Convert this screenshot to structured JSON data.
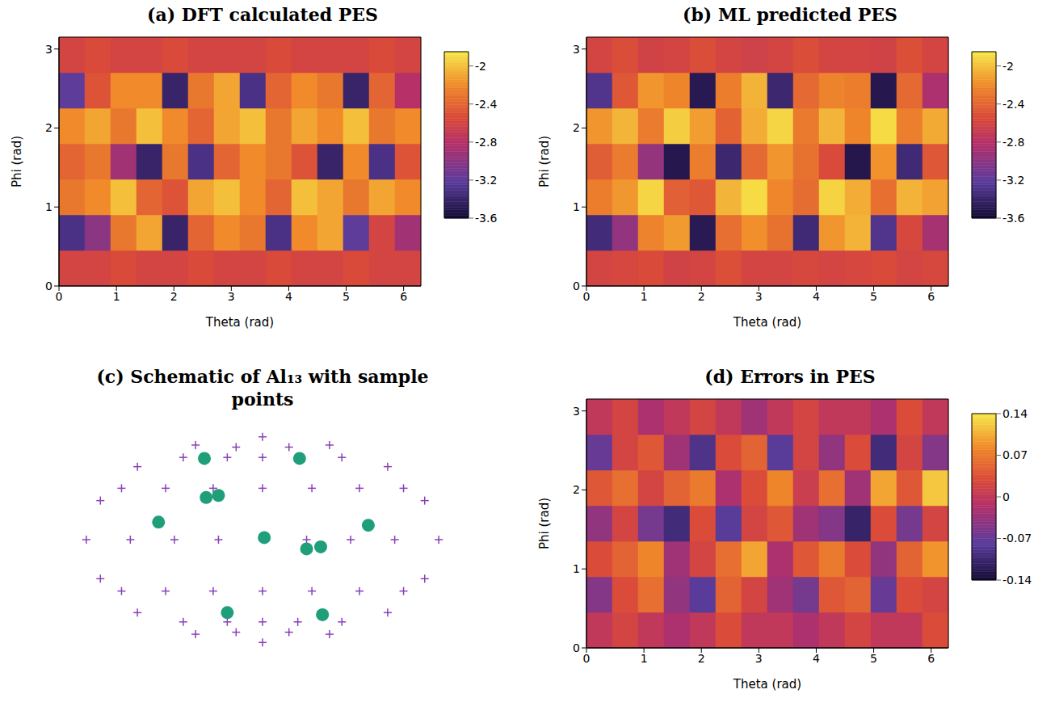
{
  "chart_data": [
    {
      "type": "heatmap",
      "title": "(a) DFT calculated PES",
      "x_label": "Theta (rad)",
      "y_label": "Phi (rad)",
      "xlim": [
        0,
        6.3
      ],
      "ylim": [
        0,
        3.15
      ],
      "xticks": [
        0,
        1,
        2,
        3,
        4,
        5,
        6
      ],
      "yticks": [
        0,
        1,
        2,
        3
      ],
      "x_edges": [
        0,
        0.45,
        0.9,
        1.35,
        1.8,
        2.25,
        2.7,
        3.15,
        3.6,
        4.05,
        4.5,
        4.95,
        5.4,
        5.85,
        6.3
      ],
      "y_edges": [
        0,
        0.45,
        0.9,
        1.35,
        1.8,
        2.25,
        2.7,
        3.15
      ],
      "z": [
        [
          -2.6,
          -2.6,
          -2.55,
          -2.6,
          -2.6,
          -2.55,
          -2.6,
          -2.6,
          -2.55,
          -2.6,
          -2.6,
          -2.55,
          -2.6,
          -2.6
        ],
        [
          -3.3,
          -3.0,
          -2.3,
          -2.1,
          -3.4,
          -2.4,
          -2.2,
          -2.3,
          -3.3,
          -2.2,
          -2.1,
          -3.2,
          -2.6,
          -2.9
        ],
        [
          -2.3,
          -2.2,
          -2.0,
          -2.4,
          -2.5,
          -2.1,
          -2.0,
          -2.2,
          -2.4,
          -2.0,
          -2.1,
          -2.3,
          -2.1,
          -2.2
        ],
        [
          -2.4,
          -2.3,
          -2.9,
          -3.4,
          -2.3,
          -3.3,
          -2.4,
          -2.2,
          -2.3,
          -2.5,
          -3.4,
          -2.2,
          -3.3,
          -2.5
        ],
        [
          -2.2,
          -2.1,
          -2.3,
          -2.0,
          -2.2,
          -2.4,
          -2.1,
          -2.0,
          -2.3,
          -2.1,
          -2.2,
          -2.0,
          -2.3,
          -2.2
        ],
        [
          -3.2,
          -2.5,
          -2.2,
          -2.2,
          -3.4,
          -2.3,
          -2.1,
          -3.3,
          -2.4,
          -2.2,
          -2.3,
          -3.4,
          -2.4,
          -2.8
        ],
        [
          -2.6,
          -2.55,
          -2.6,
          -2.6,
          -2.55,
          -2.6,
          -2.6,
          -2.6,
          -2.55,
          -2.6,
          -2.6,
          -2.6,
          -2.55,
          -2.6
        ]
      ],
      "colorbar": {
        "range": [
          -3.6,
          -1.85
        ],
        "ticks": [
          -2,
          -2.4,
          -2.8,
          -3.2,
          -3.6
        ]
      }
    },
    {
      "type": "heatmap",
      "title": "(b) ML predicted PES",
      "x_label": "Theta (rad)",
      "y_label": "Phi (rad)",
      "xlim": [
        0,
        6.3
      ],
      "ylim": [
        0,
        3.15
      ],
      "xticks": [
        0,
        1,
        2,
        3,
        4,
        5,
        6
      ],
      "yticks": [
        0,
        1,
        2,
        3
      ],
      "x_edges": [
        0,
        0.45,
        0.9,
        1.35,
        1.8,
        2.25,
        2.7,
        3.15,
        3.6,
        4.05,
        4.5,
        4.95,
        5.4,
        5.85,
        6.3
      ],
      "y_edges": [
        0,
        0.45,
        0.9,
        1.35,
        1.8,
        2.25,
        2.7,
        3.15
      ],
      "z": [
        [
          -2.6,
          -2.58,
          -2.55,
          -2.62,
          -2.6,
          -2.52,
          -2.6,
          -2.6,
          -2.57,
          -2.6,
          -2.58,
          -2.55,
          -2.6,
          -2.57
        ],
        [
          -3.35,
          -2.97,
          -2.24,
          -2.14,
          -3.48,
          -2.35,
          -2.18,
          -2.33,
          -3.36,
          -2.16,
          -2.05,
          -3.27,
          -2.57,
          -2.88
        ],
        [
          -2.27,
          -2.15,
          -1.92,
          -2.43,
          -2.48,
          -2.04,
          -1.9,
          -2.22,
          -2.36,
          -1.93,
          -2.07,
          -2.34,
          -2.05,
          -2.11
        ],
        [
          -2.44,
          -2.28,
          -2.96,
          -3.5,
          -2.27,
          -3.38,
          -2.38,
          -2.16,
          -2.33,
          -2.55,
          -3.51,
          -2.17,
          -3.36,
          -2.48
        ],
        [
          -2.16,
          -2.04,
          -2.28,
          -1.95,
          -2.13,
          -2.42,
          -2.07,
          -1.92,
          -2.29,
          -2.04,
          -2.23,
          -1.9,
          -2.26,
          -2.08
        ],
        [
          -3.27,
          -2.48,
          -2.16,
          -2.23,
          -3.49,
          -2.27,
          -2.05,
          -3.38,
          -2.38,
          -2.24,
          -2.27,
          -3.5,
          -2.38,
          -2.85
        ],
        [
          -2.6,
          -2.53,
          -2.62,
          -2.6,
          -2.53,
          -2.6,
          -2.63,
          -2.6,
          -2.53,
          -2.6,
          -2.6,
          -2.62,
          -2.52,
          -2.6
        ]
      ],
      "colorbar": {
        "range": [
          -3.6,
          -1.85
        ],
        "ticks": [
          -2,
          -2.4,
          -2.8,
          -3.2,
          -3.6
        ]
      }
    },
    {
      "type": "scatter",
      "title": "(c) Schematic of Al₁₃ with sample points",
      "tick_labels": false,
      "xlim": [
        -1.1,
        1.1
      ],
      "ylim": [
        -1.1,
        1.1
      ],
      "series": [
        {
          "color": "#8a3fb8",
          "marker": "plus",
          "x": [
            1,
            0.92,
            0.71,
            0.38,
            0,
            -0.38,
            -0.71,
            -0.92,
            -1,
            -0.92,
            -0.71,
            -0.38,
            0,
            0.38,
            0.71,
            0.92,
            -0.8,
            -0.55,
            -0.28,
            0,
            0.28,
            0.55,
            0.8,
            -0.75,
            -0.5,
            -0.25,
            0,
            0.25,
            0.5,
            0.75,
            -0.8,
            -0.55,
            -0.28,
            0,
            0.28,
            0.55,
            0.8,
            -0.45,
            -0.2,
            0,
            0.2,
            0.45,
            -0.45,
            -0.2,
            0,
            0.2,
            0.45,
            -0.15,
            0.15,
            -0.15,
            0.15
          ],
          "y": [
            0,
            0.38,
            0.71,
            0.92,
            1,
            0.92,
            0.71,
            0.38,
            0,
            -0.38,
            -0.71,
            -0.92,
            -1,
            -0.92,
            -0.71,
            -0.38,
            0.5,
            0.5,
            0.5,
            0.5,
            0.5,
            0.5,
            0.5,
            0,
            0,
            0,
            0,
            0,
            0,
            0,
            -0.5,
            -0.5,
            -0.5,
            -0.5,
            -0.5,
            -0.5,
            -0.5,
            0.8,
            0.8,
            0.8,
            0.8,
            0.8,
            -0.8,
            -0.8,
            -0.8,
            -0.8,
            -0.8,
            0.9,
            0.9,
            -0.9,
            -0.9
          ]
        },
        {
          "color": "#1f9e7a",
          "marker": "circle",
          "x": [
            -0.33,
            0.21,
            -0.32,
            -0.25,
            -0.59,
            0.01,
            0.25,
            0.33,
            0.6,
            -0.2,
            0.34
          ],
          "y": [
            0.79,
            0.79,
            0.41,
            0.43,
            0.17,
            0.02,
            -0.09,
            -0.07,
            0.14,
            -0.71,
            -0.73
          ]
        }
      ]
    },
    {
      "type": "heatmap",
      "title": "(d) Errors in PES",
      "x_label": "Theta (rad)",
      "y_label": "Phi (rad)",
      "xlim": [
        0,
        6.3
      ],
      "ylim": [
        0,
        3.15
      ],
      "xticks": [
        0,
        1,
        2,
        3,
        4,
        5,
        6
      ],
      "yticks": [
        0,
        1,
        2,
        3
      ],
      "x_edges": [
        0,
        0.45,
        0.9,
        1.35,
        1.8,
        2.25,
        2.7,
        3.15,
        3.6,
        4.05,
        4.5,
        4.95,
        5.4,
        5.85,
        6.3
      ],
      "y_edges": [
        0,
        0.45,
        0.9,
        1.35,
        1.8,
        2.25,
        2.7,
        3.15
      ],
      "z": [
        [
          0,
          0.02,
          0,
          -0.02,
          0,
          0.03,
          0,
          0,
          -0.02,
          0,
          0.02,
          0,
          0,
          0.03
        ],
        [
          -0.05,
          0.03,
          0.06,
          -0.04,
          -0.08,
          0.05,
          0.02,
          -0.03,
          -0.06,
          0.04,
          0.05,
          -0.07,
          0.03,
          0.02
        ],
        [
          0.03,
          0.05,
          0.08,
          -0.03,
          0.02,
          0.06,
          0.1,
          -0.02,
          0.04,
          0.07,
          0.03,
          -0.04,
          0.05,
          0.09
        ],
        [
          -0.04,
          0.02,
          -0.06,
          -0.1,
          0.03,
          -0.08,
          0.02,
          0.04,
          -0.03,
          -0.05,
          -0.11,
          0.03,
          -0.06,
          0.02
        ],
        [
          0.04,
          0.06,
          0.02,
          0.05,
          0.07,
          -0.02,
          0.03,
          0.08,
          0.01,
          0.06,
          -0.03,
          0.1,
          0.04,
          0.12
        ],
        [
          -0.07,
          0.02,
          0.04,
          -0.03,
          -0.09,
          0.03,
          0.05,
          -0.08,
          0.02,
          -0.04,
          0.03,
          -0.1,
          0.02,
          -0.05
        ],
        [
          0,
          0.02,
          -0.02,
          0,
          0.02,
          0,
          -0.03,
          0,
          0.02,
          0,
          0,
          -0.02,
          0.03,
          0
        ]
      ],
      "colorbar": {
        "range": [
          -0.14,
          0.14
        ],
        "ticks": [
          0.14,
          0.07,
          0,
          -0.07,
          -0.14
        ]
      }
    }
  ]
}
